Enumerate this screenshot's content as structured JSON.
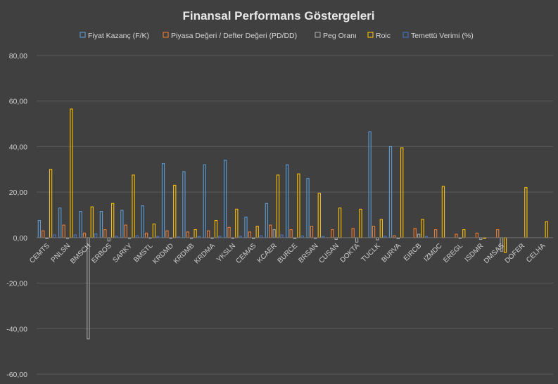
{
  "chart_data": {
    "type": "bar",
    "title": "Finansal Performans Göstergeleri",
    "xlabel": "",
    "ylabel": "",
    "ylim": [
      -60,
      80
    ],
    "yticks": [
      -60,
      -40,
      -20,
      0,
      20,
      40,
      60,
      80
    ],
    "ytick_labels": [
      "-60,00",
      "-40,00",
      "-20,00",
      "0,00",
      "20,00",
      "40,00",
      "60,00",
      "80,00"
    ],
    "grid": true,
    "legend_position": "top",
    "categories": [
      "CEMTS",
      "PNLSN",
      "BMSCH",
      "ERBOS",
      "SARKY",
      "BMSTL",
      "KRDMD",
      "KRDMB",
      "KRDMA",
      "YKSLN",
      "CEMAS",
      "KCAER",
      "BURCE",
      "BRSAN",
      "CUSAN",
      "DOKTA",
      "TUCLK",
      "BURVA",
      "EIRCB",
      "IZMDC",
      "EREGL",
      "ISDMR",
      "DMSAS",
      "DOFER",
      "CELHA"
    ],
    "series": [
      {
        "name": "Fiyat Kazanç (F/K)",
        "color": "#5b9bd5",
        "values": [
          7.5,
          13,
          11.5,
          11.5,
          12,
          14,
          32.5,
          29,
          32,
          34,
          9,
          15,
          32,
          26,
          null,
          null,
          46.5,
          40,
          null,
          null,
          null,
          null,
          null,
          null,
          null
        ]
      },
      {
        "name": "Piyasa Değeri / Defter Değeri (PD/DD)",
        "color": "#ed7d31",
        "values": [
          3,
          5.5,
          2,
          3.5,
          5.5,
          2,
          3,
          2.5,
          3,
          4.5,
          2.5,
          5.5,
          3.5,
          5,
          3.5,
          4,
          5,
          0.8,
          4,
          3.5,
          1.5,
          2,
          3.5,
          null,
          null
        ]
      },
      {
        "name": "Peg Oranı",
        "color": "#a5a5a5",
        "values": [
          -0.5,
          -0.4,
          -44.5,
          -1.5,
          -0.4,
          -0.3,
          -0.4,
          -0.4,
          -0.4,
          -0.4,
          -0.5,
          3.5,
          -0.5,
          -0.4,
          -0.8,
          -2,
          -1,
          -0.5,
          1.5,
          null,
          -0.4,
          -0.8,
          -6,
          null,
          null
        ]
      },
      {
        "name": "Roic",
        "color": "#ffc000",
        "values": [
          30,
          56.5,
          13.5,
          15,
          27.5,
          6,
          23,
          3.5,
          7.5,
          12.5,
          5,
          27.5,
          28,
          19.5,
          13,
          12.5,
          8,
          39.5,
          8,
          22.5,
          3.5,
          -0.4,
          -6.5,
          22,
          7
        ]
      },
      {
        "name": "Temettü Verimi (%)",
        "color": "#4472c4",
        "values": [
          1.2,
          1.2,
          1.7,
          0.6,
          0.8,
          0.5,
          0.3,
          0.5,
          0.6,
          0.6,
          0.8,
          1.2,
          0.7,
          0.5,
          null,
          null,
          0.6,
          null,
          0.5,
          null,
          null,
          null,
          null,
          null,
          null
        ]
      }
    ]
  }
}
